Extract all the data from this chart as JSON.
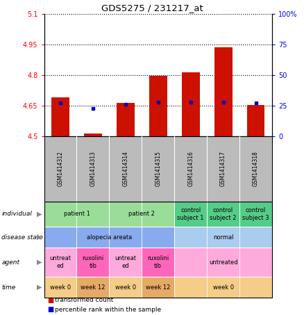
{
  "title": "GDS5275 / 231217_at",
  "samples": [
    "GSM1414312",
    "GSM1414313",
    "GSM1414314",
    "GSM1414315",
    "GSM1414316",
    "GSM1414317",
    "GSM1414318"
  ],
  "transformed_count": [
    4.69,
    4.515,
    4.665,
    4.795,
    4.815,
    4.935,
    4.655
  ],
  "percentile_rank": [
    27,
    23,
    26,
    28,
    28,
    28,
    27
  ],
  "ylim_left": [
    4.5,
    5.1
  ],
  "ylim_right": [
    0,
    100
  ],
  "yticks_left": [
    4.5,
    4.65,
    4.8,
    4.95,
    5.1
  ],
  "yticks_right": [
    0,
    25,
    50,
    75,
    100
  ],
  "ytick_labels_left": [
    "4.5",
    "4.65",
    "4.8",
    "4.95",
    "5.1"
  ],
  "ytick_labels_right": [
    "0",
    "25",
    "50",
    "75",
    "100%"
  ],
  "bar_color": "#CC1100",
  "dot_color": "#0000CC",
  "bar_width": 0.55,
  "individual_labels": [
    {
      "text": "patient 1",
      "cols": [
        0,
        1
      ],
      "color": "#99DD99"
    },
    {
      "text": "patient 2",
      "cols": [
        2,
        3
      ],
      "color": "#99DD99"
    },
    {
      "text": "control\nsubject 1",
      "cols": [
        4
      ],
      "color": "#55CC88"
    },
    {
      "text": "control\nsubject 2",
      "cols": [
        5
      ],
      "color": "#55CC88"
    },
    {
      "text": "control\nsubject 3",
      "cols": [
        6
      ],
      "color": "#55CC88"
    }
  ],
  "disease_state_labels": [
    {
      "text": "alopecia areata",
      "cols": [
        0,
        1,
        2,
        3
      ],
      "color": "#88AAEE"
    },
    {
      "text": "normal",
      "cols": [
        4,
        5,
        6
      ],
      "color": "#AACCEE"
    }
  ],
  "agent_labels": [
    {
      "text": "untreat\ned",
      "cols": [
        0
      ],
      "color": "#FFAADD"
    },
    {
      "text": "ruxolini\ntib",
      "cols": [
        1
      ],
      "color": "#FF66BB"
    },
    {
      "text": "untreat\ned",
      "cols": [
        2
      ],
      "color": "#FFAADD"
    },
    {
      "text": "ruxolini\ntib",
      "cols": [
        3
      ],
      "color": "#FF66BB"
    },
    {
      "text": "untreated",
      "cols": [
        4,
        5,
        6
      ],
      "color": "#FFAADD"
    }
  ],
  "time_labels": [
    {
      "text": "week 0",
      "cols": [
        0
      ],
      "color": "#F5CC88"
    },
    {
      "text": "week 12",
      "cols": [
        1
      ],
      "color": "#E5AA66"
    },
    {
      "text": "week 0",
      "cols": [
        2
      ],
      "color": "#F5CC88"
    },
    {
      "text": "week 12",
      "cols": [
        3
      ],
      "color": "#E5AA66"
    },
    {
      "text": "week 0",
      "cols": [
        4,
        5,
        6
      ],
      "color": "#F5CC88"
    }
  ],
  "row_labels": [
    "individual",
    "disease state",
    "agent",
    "time"
  ],
  "legend": [
    {
      "color": "#CC1100",
      "label": "transformed count"
    },
    {
      "color": "#0000CC",
      "label": "percentile rank within the sample"
    }
  ],
  "sample_box_color": "#BBBBBB",
  "fig_bg": "#FFFFFF"
}
